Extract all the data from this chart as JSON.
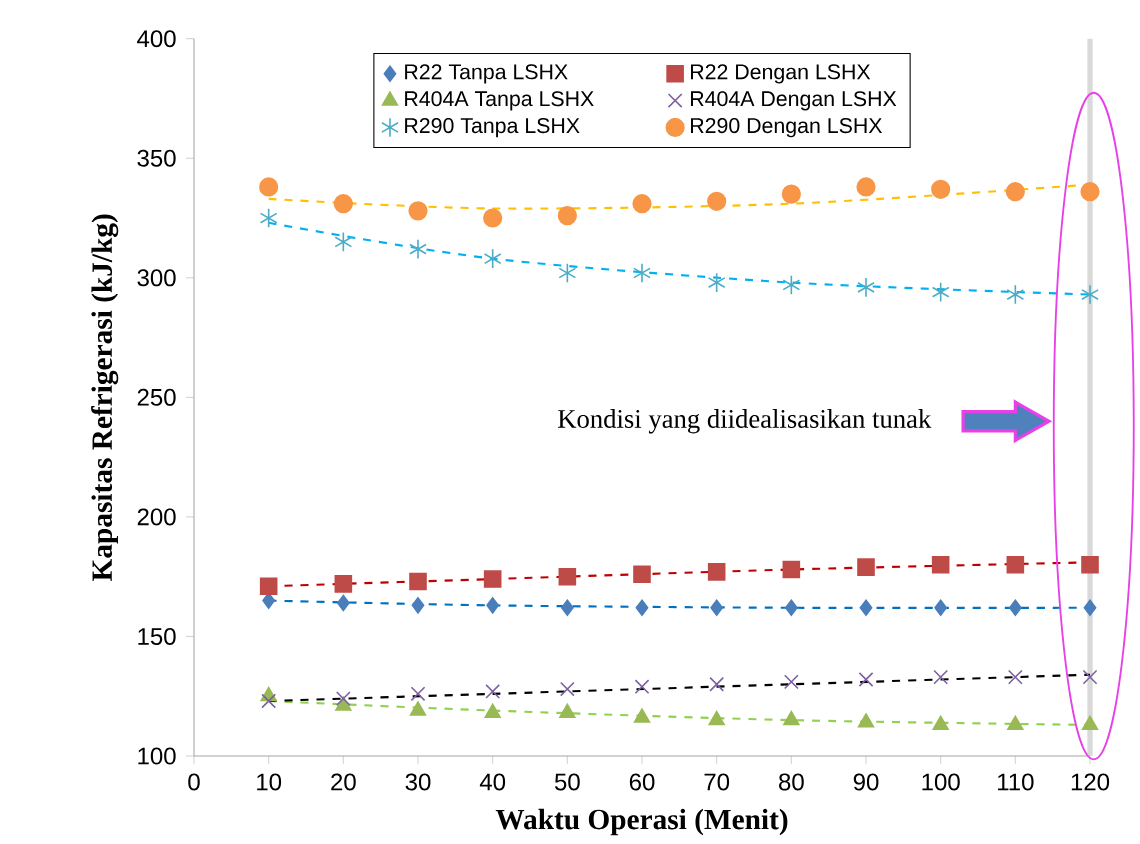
{
  "chart_data": {
    "type": "scatter",
    "xlabel": "Waktu Operasi (Menit)",
    "ylabel": "Kapasitas Refrigerasi (kJ/kg)",
    "x": [
      10,
      20,
      30,
      40,
      50,
      60,
      70,
      80,
      90,
      100,
      110,
      120
    ],
    "xlim": [
      0,
      120
    ],
    "xticks": [
      0,
      10,
      20,
      30,
      40,
      50,
      60,
      70,
      80,
      90,
      100,
      110,
      120
    ],
    "ylim": [
      100,
      400
    ],
    "yticks": [
      100,
      150,
      200,
      250,
      300,
      350,
      400
    ],
    "legend": "top",
    "grid": false,
    "series": [
      {
        "name": "R22 Tanpa LSHX",
        "color": "#4a7ebb",
        "marker": "diamond",
        "values": [
          165,
          164,
          163,
          163,
          162,
          162,
          162,
          162,
          162,
          162,
          162,
          162
        ]
      },
      {
        "name": "R22 Dengan LSHX",
        "color": "#be4b48",
        "marker": "square",
        "values": [
          171,
          172,
          173,
          174,
          175,
          176,
          177,
          178,
          179,
          180,
          180,
          180
        ]
      },
      {
        "name": "R404A Tanpa LSHX",
        "color": "#98b954",
        "marker": "triangle",
        "values": [
          125,
          121,
          119,
          118,
          118,
          116,
          115,
          115,
          114,
          113,
          113,
          113
        ]
      },
      {
        "name": "R404A Dengan LSHX",
        "color": "#7d60a0",
        "marker": "cross",
        "values": [
          123,
          124,
          126,
          127,
          128,
          129,
          130,
          131,
          132,
          133,
          133,
          133
        ]
      },
      {
        "name": "R290 Tanpa LSHX",
        "color": "#4bacc6",
        "values": [
          325,
          315,
          312,
          308,
          302,
          302,
          298,
          297,
          296,
          294,
          293,
          293
        ]
      },
      {
        "name": "R290 Dengan LSHX",
        "color": "#f79646",
        "marker": "circle",
        "values": [
          338,
          331,
          328,
          325,
          326,
          331,
          332,
          335,
          338,
          337,
          336,
          336
        ]
      },
      {
        "type": "line",
        "line_style": "dashed",
        "color": "#0070c0",
        "x": [
          10,
          40,
          80,
          120
        ],
        "values": [
          165,
          163,
          162,
          162
        ]
      },
      {
        "type": "line",
        "line_style": "dashed",
        "color": "#c00000",
        "x": [
          10,
          40,
          80,
          120
        ],
        "values": [
          171,
          174,
          178,
          181
        ]
      },
      {
        "type": "line",
        "line_style": "dashed",
        "color": "#92d050",
        "x": [
          10,
          40,
          80,
          120
        ],
        "values": [
          123,
          119,
          115,
          113
        ]
      },
      {
        "type": "line",
        "line_style": "dashed",
        "color": "#000000",
        "x": [
          10,
          40,
          80,
          120
        ],
        "values": [
          123,
          126,
          130,
          134
        ]
      },
      {
        "type": "line",
        "line_style": "dashed",
        "color": "#00b0f0",
        "x": [
          10,
          40,
          80,
          120
        ],
        "values": [
          323,
          308,
          298,
          293
        ]
      },
      {
        "type": "line",
        "line_style": "dashed",
        "color": "#ffc000",
        "x": [
          10,
          40,
          80,
          120
        ],
        "values": [
          333,
          329,
          331,
          339
        ]
      }
    ],
    "ref_lines": [
      {
        "axis": "x",
        "value": 120,
        "color": "#d9d9d9"
      }
    ],
    "annotations": [
      "Kondisi yang diidealisasikan tunak"
    ]
  }
}
